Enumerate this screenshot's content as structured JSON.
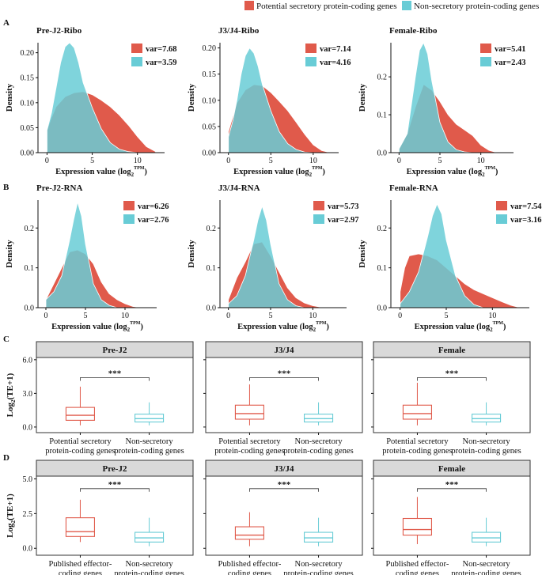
{
  "legend": {
    "items": [
      {
        "label": "Potential secretory protein-coding genes",
        "color": "#E05A4B"
      },
      {
        "label": "Non-secretory protein-coding genes",
        "color": "#68CCD6"
      }
    ]
  },
  "panel_labels": {
    "A": "A",
    "B": "B",
    "C": "C",
    "D": "D"
  },
  "colors": {
    "red": "#E05A4B",
    "cyan": "#68CCD6",
    "overlap": "#4E9EA6",
    "strip": "#D9D9D9"
  },
  "density_axis": {
    "ylabel": "Density",
    "xlabel_main": "Expression value (log",
    "xlabel_sub": "2",
    "xlabel_sup": "TPM",
    "xlabel_close": ")"
  },
  "box_axis": {
    "ylabel_main": "Log",
    "ylabel_sub": "2",
    "ylabel_rest": "(TE+1)",
    "sig": "***"
  },
  "chart_data": [
    {
      "id": "A1",
      "type": "area",
      "title": "Pre-J2-Ribo",
      "xlim": [
        -1,
        13
      ],
      "ylim": [
        0,
        0.22
      ],
      "xticks": [
        0,
        5,
        10
      ],
      "yticks": [
        0,
        0.05,
        0.1,
        0.15,
        0.2
      ],
      "ytick_labels": [
        "0.00",
        "0.05",
        "0.10",
        "0.15",
        "0.20"
      ],
      "legend_var": [
        "var=7.68",
        "var=3.59"
      ],
      "series": [
        {
          "name": "Potential secretory",
          "x": [
            0,
            0.5,
            1,
            2,
            3,
            4,
            5,
            6,
            7,
            8,
            9,
            10,
            11,
            12
          ],
          "y": [
            0.045,
            0.07,
            0.092,
            0.112,
            0.12,
            0.122,
            0.116,
            0.105,
            0.092,
            0.075,
            0.055,
            0.032,
            0.012,
            0.002
          ]
        },
        {
          "name": "Non-secretory",
          "x": [
            0,
            0.5,
            1,
            1.5,
            2,
            2.5,
            3,
            3.5,
            4,
            5,
            6,
            7,
            8,
            9,
            10
          ],
          "y": [
            0.045,
            0.08,
            0.13,
            0.18,
            0.212,
            0.22,
            0.21,
            0.18,
            0.14,
            0.09,
            0.048,
            0.02,
            0.007,
            0.002,
            0
          ]
        }
      ]
    },
    {
      "id": "A2",
      "type": "area",
      "title": "J3/J4-Ribo",
      "xlim": [
        -1,
        13
      ],
      "ylim": [
        0,
        0.21
      ],
      "xticks": [
        0,
        5,
        10
      ],
      "yticks": [
        0,
        0.05,
        0.1,
        0.15,
        0.2
      ],
      "ytick_labels": [
        "0.00",
        "0.05",
        "0.10",
        "0.15",
        "0.20"
      ],
      "legend_var": [
        "var=7.14",
        "var=4.16"
      ],
      "series": [
        {
          "name": "Potential secretory",
          "x": [
            0,
            1,
            2,
            3,
            4,
            5,
            6,
            7,
            8,
            9,
            10,
            11,
            12
          ],
          "y": [
            0.04,
            0.095,
            0.12,
            0.13,
            0.128,
            0.115,
            0.098,
            0.08,
            0.058,
            0.035,
            0.015,
            0.004,
            0
          ]
        },
        {
          "name": "Non-secretory",
          "x": [
            0,
            0.5,
            1,
            1.5,
            2,
            2.5,
            3,
            3.5,
            4,
            5,
            6,
            7,
            8,
            9,
            10
          ],
          "y": [
            0.03,
            0.06,
            0.1,
            0.15,
            0.185,
            0.2,
            0.19,
            0.165,
            0.13,
            0.08,
            0.04,
            0.017,
            0.006,
            0.001,
            0
          ]
        }
      ]
    },
    {
      "id": "A3",
      "type": "area",
      "title": "Female-Ribo",
      "xlim": [
        -1,
        14
      ],
      "ylim": [
        0,
        0.29
      ],
      "xticks": [
        0,
        5,
        10
      ],
      "yticks": [
        0,
        0.1,
        0.2
      ],
      "ytick_labels": [
        "0.0",
        "0.1",
        "0.2"
      ],
      "legend_var": [
        "var=5.41",
        "var=2.43"
      ],
      "series": [
        {
          "name": "Potential secretory",
          "x": [
            0,
            1,
            2,
            3,
            4,
            5,
            6,
            7,
            8,
            9,
            10,
            11,
            12
          ],
          "y": [
            0.01,
            0.05,
            0.12,
            0.18,
            0.165,
            0.135,
            0.1,
            0.075,
            0.06,
            0.045,
            0.02,
            0.006,
            0
          ]
        },
        {
          "name": "Non-secretory",
          "x": [
            0,
            1,
            2,
            2.5,
            3,
            3.5,
            4,
            5,
            6,
            7,
            8,
            9
          ],
          "y": [
            0.01,
            0.05,
            0.2,
            0.27,
            0.29,
            0.26,
            0.19,
            0.08,
            0.028,
            0.008,
            0.002,
            0
          ]
        }
      ]
    },
    {
      "id": "B1",
      "type": "area",
      "title": "Pre-J2-RNA",
      "xlim": [
        -1,
        14
      ],
      "ylim": [
        0,
        0.27
      ],
      "xticks": [
        0,
        5,
        10
      ],
      "yticks": [
        0,
        0.1,
        0.2
      ],
      "ytick_labels": [
        "0.0",
        "0.1",
        "0.2"
      ],
      "legend_var": [
        "var=6.26",
        "var=2.76"
      ],
      "series": [
        {
          "name": "Potential secretory",
          "x": [
            0,
            1,
            2,
            3,
            4,
            5,
            6,
            7,
            8,
            9,
            10,
            11,
            12
          ],
          "y": [
            0.02,
            0.06,
            0.1,
            0.14,
            0.145,
            0.135,
            0.11,
            0.065,
            0.035,
            0.02,
            0.01,
            0.003,
            0
          ]
        },
        {
          "name": "Non-secretory",
          "x": [
            0,
            1,
            2,
            3,
            3.5,
            4,
            4.5,
            5,
            6,
            7,
            8,
            9
          ],
          "y": [
            0.02,
            0.04,
            0.08,
            0.17,
            0.22,
            0.265,
            0.23,
            0.16,
            0.06,
            0.02,
            0.006,
            0
          ]
        }
      ]
    },
    {
      "id": "B2",
      "type": "area",
      "title": "J3/J4-RNA",
      "xlim": [
        -1,
        14
      ],
      "ylim": [
        0,
        0.27
      ],
      "xticks": [
        0,
        5,
        10
      ],
      "yticks": [
        0,
        0.1,
        0.2
      ],
      "ytick_labels": [
        "0.0",
        "0.1",
        "0.2"
      ],
      "legend_var": [
        "var=5.73",
        "var=2.97"
      ],
      "series": [
        {
          "name": "Potential secretory",
          "x": [
            0,
            1,
            2,
            3,
            4,
            5,
            6,
            7,
            8,
            9,
            10,
            11,
            12
          ],
          "y": [
            0.02,
            0.075,
            0.115,
            0.16,
            0.165,
            0.13,
            0.09,
            0.05,
            0.025,
            0.012,
            0.005,
            0.001,
            0
          ]
        },
        {
          "name": "Non-secretory",
          "x": [
            0,
            1,
            2,
            3,
            3.5,
            4,
            4.5,
            5,
            6,
            7,
            8,
            9
          ],
          "y": [
            0.01,
            0.03,
            0.08,
            0.17,
            0.22,
            0.255,
            0.22,
            0.16,
            0.06,
            0.02,
            0.005,
            0
          ]
        }
      ]
    },
    {
      "id": "B3",
      "type": "area",
      "title": "Female-RNA",
      "xlim": [
        -1,
        14
      ],
      "ylim": [
        0,
        0.27
      ],
      "xticks": [
        0,
        5,
        10
      ],
      "yticks": [
        0,
        0.1,
        0.2
      ],
      "ytick_labels": [
        "0.0",
        "0.1",
        "0.2"
      ],
      "legend_var": [
        "var=7.54",
        "var=3.16"
      ],
      "series": [
        {
          "name": "Potential secretory",
          "x": [
            0,
            0.5,
            1,
            2,
            3,
            4,
            5,
            6,
            7,
            8,
            9,
            10,
            11,
            12,
            13
          ],
          "y": [
            0.04,
            0.1,
            0.13,
            0.135,
            0.13,
            0.12,
            0.1,
            0.08,
            0.06,
            0.045,
            0.035,
            0.025,
            0.015,
            0.006,
            0
          ]
        },
        {
          "name": "Non-secretory",
          "x": [
            0,
            1,
            2,
            3,
            3.5,
            4,
            4.5,
            5,
            6,
            7,
            8,
            9
          ],
          "y": [
            0.01,
            0.04,
            0.09,
            0.18,
            0.23,
            0.26,
            0.235,
            0.17,
            0.08,
            0.03,
            0.008,
            0
          ]
        }
      ]
    },
    {
      "id": "C1",
      "type": "box",
      "title": "Pre-J2",
      "ylim": [
        -0.5,
        6.2
      ],
      "yticks": [
        0,
        3,
        6
      ],
      "ytick_labels": [
        "0.0",
        "3.0",
        "6.0"
      ],
      "groups": [
        {
          "label1": "Potential secretory",
          "label2": "protein-coding genes",
          "color": "red",
          "q": [
            0.15,
            0.6,
            1.05,
            1.75,
            3.6
          ]
        },
        {
          "label1": "Non-secretory",
          "label2": "protein-coding genes",
          "color": "cyan",
          "q": [
            0.15,
            0.45,
            0.75,
            1.15,
            2.2
          ]
        }
      ],
      "bracket_y": 4.4,
      "sig": "***"
    },
    {
      "id": "C2",
      "type": "box",
      "title": "J3/J4",
      "ylim": [
        -0.5,
        6.2
      ],
      "yticks": [
        0,
        3,
        6
      ],
      "ytick_labels": [
        "0.0",
        "3.0",
        "6.0"
      ],
      "groups": [
        {
          "label1": "Potential secretory",
          "label2": "protein-coding genes",
          "color": "red",
          "q": [
            0.15,
            0.7,
            1.2,
            1.95,
            3.8
          ]
        },
        {
          "label1": "Non-secretory",
          "label2": "protein-coding genes",
          "color": "cyan",
          "q": [
            0.15,
            0.45,
            0.75,
            1.15,
            2.2
          ]
        }
      ],
      "bracket_y": 4.4,
      "sig": "***"
    },
    {
      "id": "C3",
      "type": "box",
      "title": "Female",
      "ylim": [
        -0.5,
        6.2
      ],
      "yticks": [
        0,
        3,
        6
      ],
      "ytick_labels": [
        "0.0",
        "3.0",
        "6.0"
      ],
      "groups": [
        {
          "label1": "Potential secretory",
          "label2": "protein-coding genes",
          "color": "red",
          "q": [
            0.15,
            0.7,
            1.2,
            1.95,
            3.95
          ]
        },
        {
          "label1": "Non-secretory",
          "label2": "protein-coding genes",
          "color": "cyan",
          "q": [
            0.15,
            0.45,
            0.75,
            1.15,
            2.2
          ]
        }
      ],
      "bracket_y": 4.4,
      "sig": "***"
    },
    {
      "id": "D1",
      "type": "box",
      "title": "Pre-J2",
      "ylim": [
        -0.5,
        5.2
      ],
      "yticks": [
        0,
        2.5,
        5
      ],
      "ytick_labels": [
        "0.0",
        "2.5",
        "5.0"
      ],
      "groups": [
        {
          "label1": "Published effector-",
          "label2": "coding genes",
          "color": "red",
          "q": [
            0.45,
            0.85,
            1.2,
            2.2,
            3.5
          ]
        },
        {
          "label1": "Non-secretory",
          "label2": "protein-coding genes",
          "color": "cyan",
          "q": [
            0.15,
            0.45,
            0.75,
            1.15,
            2.2
          ]
        }
      ],
      "bracket_y": 4.3,
      "sig": "***"
    },
    {
      "id": "D2",
      "type": "box",
      "title": "J3/J4",
      "ylim": [
        -0.5,
        5.2
      ],
      "yticks": [
        0,
        2.5,
        5
      ],
      "ytick_labels": [
        "0.0",
        "2.5",
        "5.0"
      ],
      "groups": [
        {
          "label1": "Published effector-",
          "label2": "coding genes",
          "color": "red",
          "q": [
            0.15,
            0.65,
            0.95,
            1.55,
            2.6
          ]
        },
        {
          "label1": "Non-secretory",
          "label2": "protein-coding genes",
          "color": "cyan",
          "q": [
            0.15,
            0.45,
            0.75,
            1.15,
            2.2
          ]
        }
      ],
      "bracket_y": 4.3,
      "sig": "***"
    },
    {
      "id": "D3",
      "type": "box",
      "title": "Female",
      "ylim": [
        -0.5,
        5.2
      ],
      "yticks": [
        0,
        2.5,
        5
      ],
      "ytick_labels": [
        "0.0",
        "2.5",
        "5.0"
      ],
      "groups": [
        {
          "label1": "Published effector-",
          "label2": "coding genes",
          "color": "red",
          "q": [
            0.3,
            0.95,
            1.35,
            2.15,
            3.7
          ]
        },
        {
          "label1": "Non-secretory",
          "label2": "protein-coding genes",
          "color": "cyan",
          "q": [
            0.15,
            0.45,
            0.75,
            1.15,
            2.2
          ]
        }
      ],
      "bracket_y": 4.3,
      "sig": "***"
    }
  ]
}
